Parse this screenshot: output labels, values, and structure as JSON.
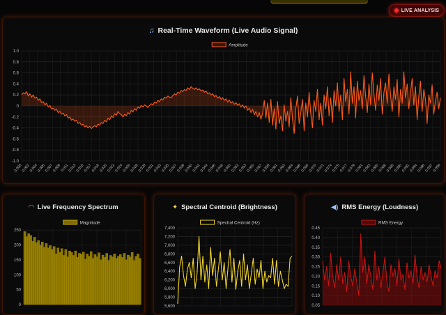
{
  "header": {
    "live_badge": "LIVE ANALYSIS"
  },
  "icons": {
    "waveform": "music-note-icon",
    "spectrum": "rainbow-icon",
    "centroid": "sparkles-icon",
    "rms": "speaker-icon",
    "live": "red-dot-icon"
  },
  "colors": {
    "waveform": "#ff5a1a",
    "spectrum": "#c8a800",
    "centroid": "#f2d52a",
    "rms": "#cc1414",
    "live": "#ff2a2a"
  },
  "chart_data": [
    {
      "id": "waveform",
      "type": "line",
      "title": "Real-Time Waveform (Live Audio Signal)",
      "legend": "Amplitude",
      "legend_position": "top",
      "grid": true,
      "ylim": [
        -1.0,
        1.0
      ],
      "yticks": [
        "1.0",
        "0.8",
        "0.6",
        "0.4",
        "0.2",
        "0",
        "-0.2",
        "-0.4",
        "-0.6",
        "-0.8",
        "-1.0"
      ],
      "xticks": [
        "0.000",
        "0.002",
        "0.004",
        "0.006",
        "0.007",
        "0.009",
        "0.011",
        "0.013",
        "0.015",
        "0.017",
        "0.018",
        "0.020",
        "0.022",
        "0.024",
        "0.026",
        "0.028",
        "0.029",
        "0.031",
        "0.033",
        "0.035",
        "0.037",
        "0.039",
        "0.040",
        "0.042",
        "0.044",
        "0.046",
        "0.048",
        "0.050",
        "0.052",
        "0.053",
        "0.055",
        "0.057",
        "0.059",
        "0.061",
        "0.063",
        "0.064",
        "0.066",
        "0.068",
        "0.070",
        "0.072",
        "0.074",
        "0.075",
        "0.077",
        "0.079",
        "0.081",
        "0.083",
        "0.085",
        "0.086",
        "0.088",
        "0.090",
        "0.092",
        "0.094",
        "0.096",
        "0.097",
        "0.099"
      ],
      "values": [
        0.2,
        0.24,
        0.22,
        0.26,
        0.18,
        0.22,
        0.16,
        0.2,
        0.14,
        0.16,
        0.1,
        0.13,
        0.06,
        0.08,
        0.02,
        0.05,
        -0.02,
        0.01,
        -0.06,
        -0.04,
        -0.08,
        -0.06,
        -0.12,
        -0.1,
        -0.15,
        -0.13,
        -0.18,
        -0.16,
        -0.22,
        -0.2,
        -0.26,
        -0.24,
        -0.28,
        -0.26,
        -0.32,
        -0.3,
        -0.35,
        -0.33,
        -0.38,
        -0.36,
        -0.4,
        -0.37,
        -0.41,
        -0.38,
        -0.36,
        -0.38,
        -0.33,
        -0.35,
        -0.3,
        -0.32,
        -0.26,
        -0.29,
        -0.22,
        -0.25,
        -0.18,
        -0.21,
        -0.14,
        -0.17,
        -0.1,
        -0.14,
        -0.16,
        -0.2,
        -0.15,
        -0.18,
        -0.12,
        -0.15,
        -0.08,
        -0.11,
        -0.05,
        -0.08,
        -0.02,
        -0.04,
        0.01,
        -0.02,
        0.02,
        0.0,
        -0.03,
        0.01,
        0.04,
        0.02,
        0.07,
        0.05,
        0.1,
        0.08,
        0.13,
        0.11,
        0.16,
        0.14,
        0.18,
        0.16,
        0.15,
        0.19,
        0.22,
        0.2,
        0.25,
        0.23,
        0.28,
        0.26,
        0.3,
        0.28,
        0.33,
        0.3,
        0.35,
        0.32,
        0.3,
        0.33,
        0.29,
        0.31,
        0.27,
        0.29,
        0.25,
        0.27,
        0.22,
        0.24,
        0.2,
        0.22,
        0.17,
        0.19,
        0.14,
        0.17,
        0.12,
        0.15,
        0.1,
        0.13,
        0.07,
        0.11,
        0.05,
        0.08,
        0.03,
        0.06,
        0.01,
        0.04,
        -0.02,
        0.02,
        -0.04,
        0.0,
        -0.08,
        -0.04,
        -0.12,
        -0.06,
        -0.16,
        -0.1,
        -0.2,
        -0.12,
        -0.24,
        -0.14,
        0.1,
        -0.22,
        0.05,
        -0.3,
        0.12,
        -0.35,
        -0.05,
        -0.42,
        0.08,
        -0.32,
        -0.18,
        -0.45,
        0.02,
        -0.28,
        -0.1,
        -0.38,
        0.15,
        -0.24,
        -0.5,
        -0.05,
        0.18,
        -0.32,
        -0.12,
        0.12,
        -0.45,
        0.05,
        -0.2,
        0.25,
        -0.15,
        -0.4,
        0.1,
        -0.1,
        0.3,
        -0.25,
        0.05,
        -0.35,
        0.2,
        -0.05,
        0.35,
        -0.18,
        0.15,
        -0.3,
        0.28,
        0.0,
        0.42,
        -0.1,
        0.2,
        -0.25,
        0.5,
        0.08,
        0.3,
        -0.15,
        0.62,
        0.05,
        0.35,
        -0.22,
        0.45,
        0.1,
        0.28,
        -0.05,
        0.55,
        0.18,
        -0.12,
        0.4,
        0.02,
        0.6,
        0.22,
        -0.08,
        0.38,
        0.1,
        0.5,
        -0.15,
        0.25,
        0.42,
        0.05,
        0.58,
        0.2,
        -0.1,
        0.35,
        0.12,
        0.48,
        -0.2,
        0.3,
        0.05,
        0.62,
        0.15,
        0.4,
        -0.05,
        0.25,
        0.5,
        0.02,
        0.35,
        -0.25,
        0.18,
        0.45,
        -0.1,
        0.3,
        0.12,
        -0.32,
        0.2,
        0.05,
        0.38,
        -0.15,
        0.1,
        0.25,
        -0.05,
        0.15
      ]
    },
    {
      "id": "spectrum",
      "type": "bar",
      "title": "Live Frequency Spectrum",
      "legend": "Magnitude",
      "legend_position": "top",
      "grid": true,
      "ylim": [
        0,
        255
      ],
      "yticks": [
        "250",
        "200",
        "150",
        "100",
        "50",
        "0"
      ],
      "values": [
        245,
        228,
        238,
        232,
        212,
        226,
        208,
        215,
        200,
        210,
        192,
        205,
        190,
        198,
        185,
        195,
        170,
        190,
        175,
        188,
        165,
        185,
        160,
        180,
        175,
        165,
        180,
        158,
        172,
        168,
        176,
        152,
        170,
        162,
        178,
        155,
        168,
        160,
        174,
        150,
        166,
        158,
        172,
        148,
        165,
        160,
        170,
        155,
        162,
        168,
        158,
        172,
        150,
        166,
        160,
        175,
        148,
        162,
        170,
        155
      ]
    },
    {
      "id": "centroid",
      "type": "line",
      "title": "Spectral Centroid (Brightness)",
      "legend": "Spectral Centroid (Hz)",
      "legend_position": "top",
      "grid": true,
      "ylim": [
        5600,
        7400
      ],
      "yticks": [
        "7,400",
        "7,200",
        "7,000",
        "6,800",
        "6,600",
        "6,400",
        "6,200",
        "6,000",
        "5,800",
        "5,600"
      ],
      "values": [
        5650,
        6500,
        6750,
        6300,
        6050,
        6450,
        6600,
        6250,
        6700,
        6000,
        6350,
        7200,
        6200,
        6750,
        6150,
        6550,
        6000,
        6950,
        6300,
        6700,
        6050,
        6450,
        6850,
        6200,
        6600,
        6000,
        6500,
        6900,
        6150,
        6700,
        5980,
        6400,
        6650,
        6050,
        6800,
        6200,
        6550,
        6000,
        6350,
        6700,
        6100,
        6450,
        6250,
        6650,
        6000,
        6400,
        6150,
        6300,
        6250,
        6700,
        6100,
        6650,
        6050,
        6400,
        6200,
        6000,
        6100,
        6050,
        6700,
        6750
      ]
    },
    {
      "id": "rms",
      "type": "area",
      "title": "RMS Energy (Loudness)",
      "legend": "RMS Energy",
      "legend_position": "top",
      "grid": true,
      "ylim": [
        0.05,
        0.45
      ],
      "yticks": [
        "0.45",
        "0.40",
        "0.35",
        "0.30",
        "0.25",
        "0.20",
        "0.15",
        "0.10",
        "0.05"
      ],
      "values": [
        0.28,
        0.18,
        0.25,
        0.15,
        0.32,
        0.2,
        0.14,
        0.26,
        0.18,
        0.3,
        0.16,
        0.22,
        0.12,
        0.28,
        0.2,
        0.15,
        0.24,
        0.17,
        0.1,
        0.42,
        0.22,
        0.3,
        0.16,
        0.26,
        0.2,
        0.13,
        0.33,
        0.18,
        0.25,
        0.14,
        0.22,
        0.3,
        0.17,
        0.12,
        0.26,
        0.2,
        0.24,
        0.15,
        0.29,
        0.18,
        0.21,
        0.13,
        0.27,
        0.19,
        0.23,
        0.16,
        0.31,
        0.2,
        0.14,
        0.25,
        0.18,
        0.22,
        0.17,
        0.26,
        0.2,
        0.15,
        0.23,
        0.19,
        0.28,
        0.24
      ]
    }
  ]
}
